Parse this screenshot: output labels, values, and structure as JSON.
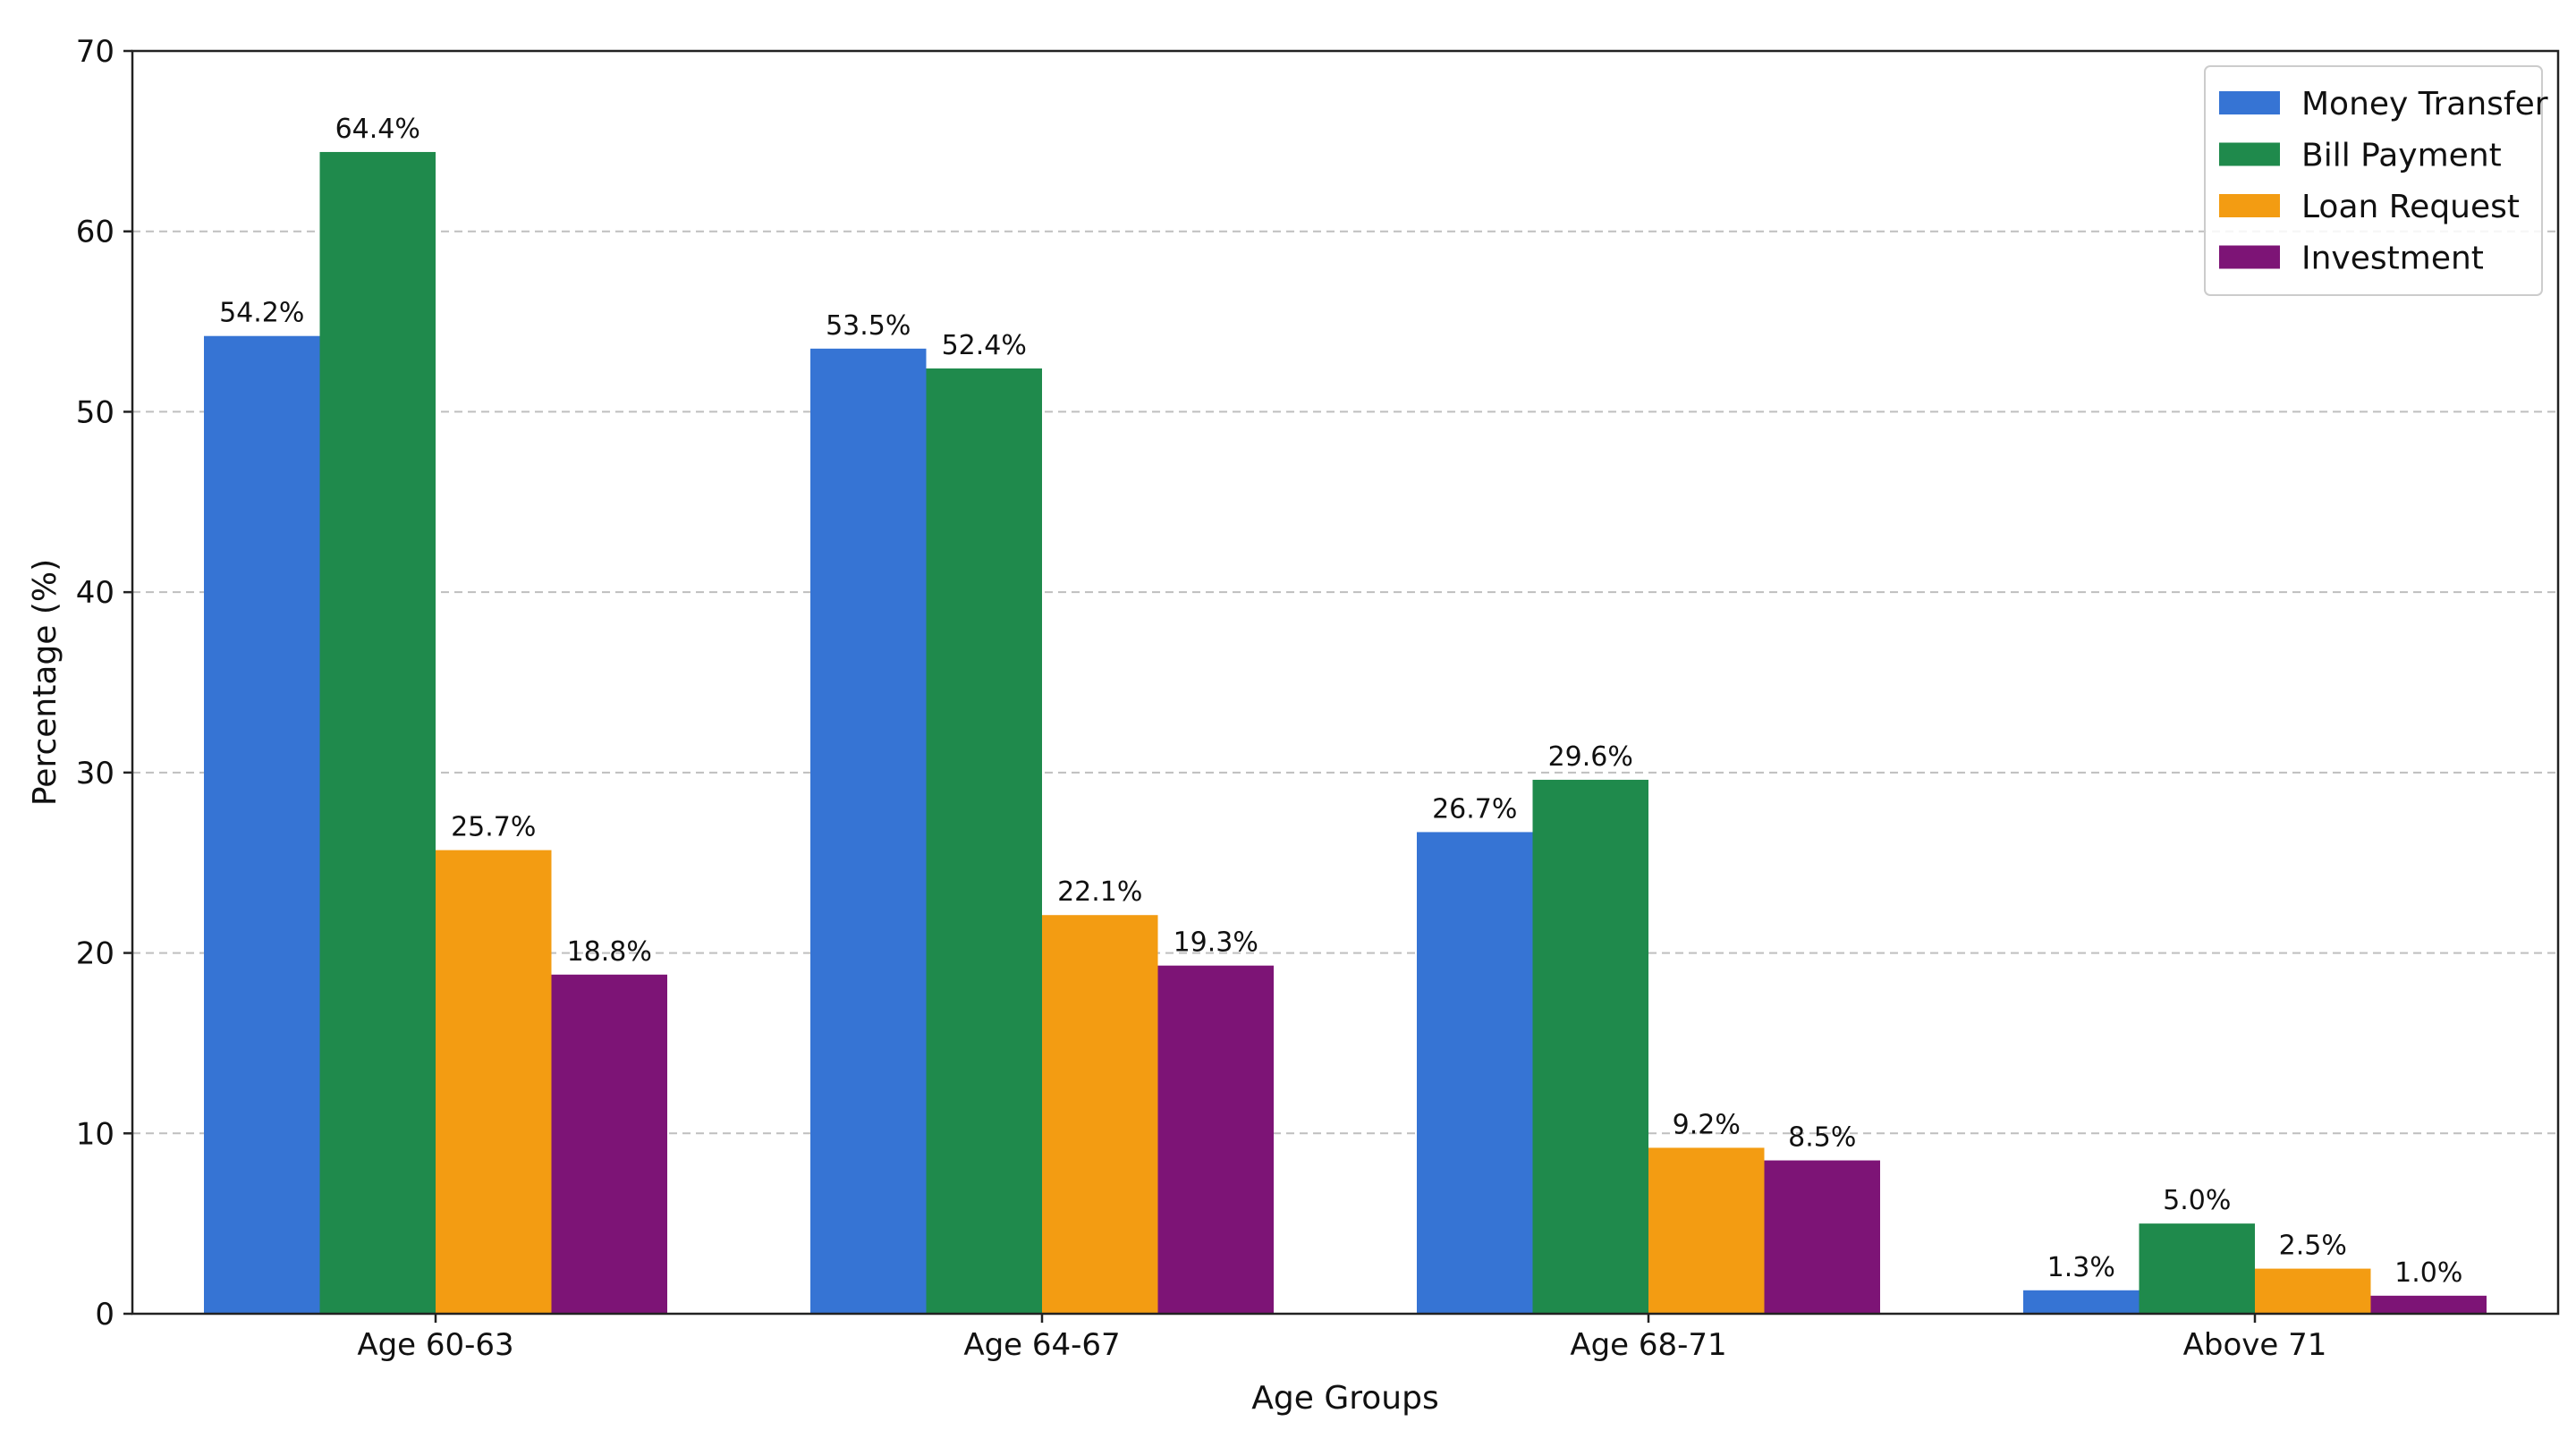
{
  "chart_data": {
    "type": "bar",
    "categories": [
      "Age 60-63",
      "Age 64-67",
      "Age 68-71",
      "Above 71"
    ],
    "series": [
      {
        "name": "Money Transfer",
        "color": "#3674d4",
        "values": [
          54.2,
          53.5,
          26.7,
          1.3
        ],
        "labels": [
          "54.2%",
          "53.5%",
          "26.7%",
          "1.3%"
        ]
      },
      {
        "name": "Bill Payment",
        "color": "#1f8a4c",
        "values": [
          64.4,
          52.4,
          29.6,
          5.0
        ],
        "labels": [
          "64.4%",
          "52.4%",
          "29.6%",
          "5.0%"
        ]
      },
      {
        "name": "Loan Request",
        "color": "#f39c12",
        "values": [
          25.7,
          22.1,
          9.2,
          2.5
        ],
        "labels": [
          "25.7%",
          "22.1%",
          "9.2%",
          "2.5%"
        ]
      },
      {
        "name": "Investment",
        "color": "#7d1476",
        "values": [
          18.8,
          19.3,
          8.5,
          1.0
        ],
        "labels": [
          "18.8%",
          "19.3%",
          "8.5%",
          "1.0%"
        ]
      }
    ],
    "xlabel": "Age Groups",
    "ylabel": "Percentage (%)",
    "ylim": [
      0,
      70
    ],
    "yticks": [
      "0",
      "10",
      "20",
      "30",
      "40",
      "50",
      "60",
      "70"
    ],
    "grid": "y-dashed",
    "legend_position": "top-right"
  }
}
